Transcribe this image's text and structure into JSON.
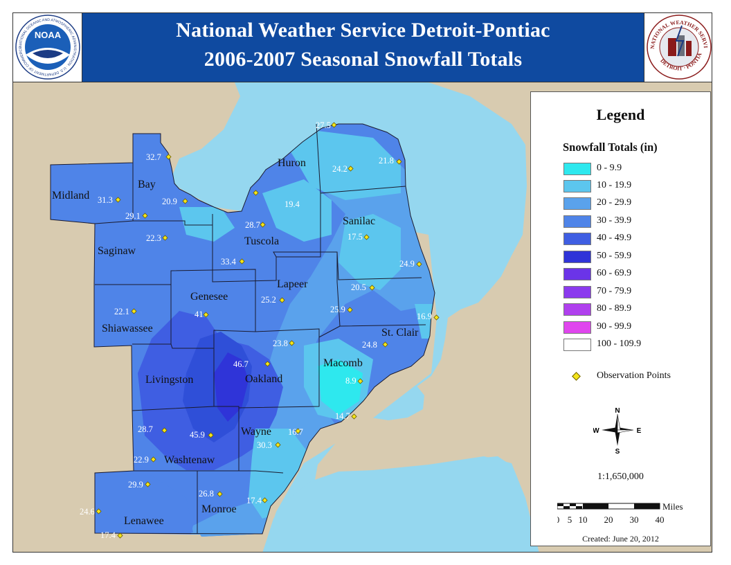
{
  "header": {
    "title_line1": "National Weather Service Detroit-Pontiac",
    "title_line2": "2006-2007 Seasonal Snowfall Totals",
    "noaa_logo_text": "NOAA",
    "noaa_ring_text": "NATIONAL OCEANIC AND ATMOSPHERIC ADMINISTRATION · U.S. DEPARTMENT OF COMMERCE",
    "nws_ring_text_top": "NATIONAL WEATHER SERVICE",
    "nws_ring_text_bottom": "DETROIT · PONTIAC"
  },
  "counties": [
    {
      "name": "Midland"
    },
    {
      "name": "Bay"
    },
    {
      "name": "Saginaw"
    },
    {
      "name": "Tuscola"
    },
    {
      "name": "Huron"
    },
    {
      "name": "Sanilac"
    },
    {
      "name": "Genesee"
    },
    {
      "name": "Lapeer"
    },
    {
      "name": "Shiawassee"
    },
    {
      "name": "St. Clair"
    },
    {
      "name": "Livingston"
    },
    {
      "name": "Oakland"
    },
    {
      "name": "Macomb"
    },
    {
      "name": "Wayne"
    },
    {
      "name": "Washtenaw"
    },
    {
      "name": "Lenawee"
    },
    {
      "name": "Monroe"
    }
  ],
  "observations": [
    {
      "value": "27.5"
    },
    {
      "value": "24.2"
    },
    {
      "value": "21.8"
    },
    {
      "value": "32.7"
    },
    {
      "value": "31.3"
    },
    {
      "value": "20.9"
    },
    {
      "value": "29.1"
    },
    {
      "value": "19.4"
    },
    {
      "value": "28.7"
    },
    {
      "value": "17.5"
    },
    {
      "value": "22.3"
    },
    {
      "value": "33.4"
    },
    {
      "value": "24.9"
    },
    {
      "value": "20.5"
    },
    {
      "value": "25.2"
    },
    {
      "value": "22.1"
    },
    {
      "value": "41"
    },
    {
      "value": "25.9"
    },
    {
      "value": "16.9"
    },
    {
      "value": "23.8"
    },
    {
      "value": "24.8"
    },
    {
      "value": "46.7"
    },
    {
      "value": "8.9"
    },
    {
      "value": "14.7"
    },
    {
      "value": "28.7"
    },
    {
      "value": "45.9"
    },
    {
      "value": "16.7"
    },
    {
      "value": "30.3"
    },
    {
      "value": "22.9"
    },
    {
      "value": "29.9"
    },
    {
      "value": "26.8"
    },
    {
      "value": "17.4"
    },
    {
      "value": "24.6"
    },
    {
      "value": "17.4"
    }
  ],
  "legend": {
    "title": "Legend",
    "subtitle": "Snowfall Totals (in)",
    "classes": [
      {
        "label": "0 - 9.9",
        "color": "#2ee8ee"
      },
      {
        "label": "10 - 19.9",
        "color": "#5cc6ee"
      },
      {
        "label": "20 - 29.9",
        "color": "#5aa2ec"
      },
      {
        "label": "30 - 39.9",
        "color": "#4f84e8"
      },
      {
        "label": "40 - 49.9",
        "color": "#3f5ee2"
      },
      {
        "label": "50 - 59.9",
        "color": "#2f34d8"
      },
      {
        "label": "60 - 69.9",
        "color": "#6b34e8"
      },
      {
        "label": "70 - 79.9",
        "color": "#8b3aee"
      },
      {
        "label": "80 - 89.9",
        "color": "#b040ee"
      },
      {
        "label": "90 - 99.9",
        "color": "#e046ee"
      },
      {
        "label": "100 - 109.9",
        "color": "#ffffff"
      }
    ],
    "observation_label": "Observation Points",
    "compass": {
      "n": "N",
      "s": "S",
      "e": "E",
      "w": "W"
    },
    "scale_text": "1:1,650,000",
    "scalebar_unit": "Miles",
    "scalebar_ticks": [
      "0",
      "5",
      "10",
      "20",
      "30",
      "40"
    ],
    "created": "Created: June 20, 2012"
  },
  "colors": {
    "header_bg": "#0f4aa0",
    "land": "#d8cbb0",
    "water": "#95d7ef",
    "observation_point": "#f4e51a"
  }
}
